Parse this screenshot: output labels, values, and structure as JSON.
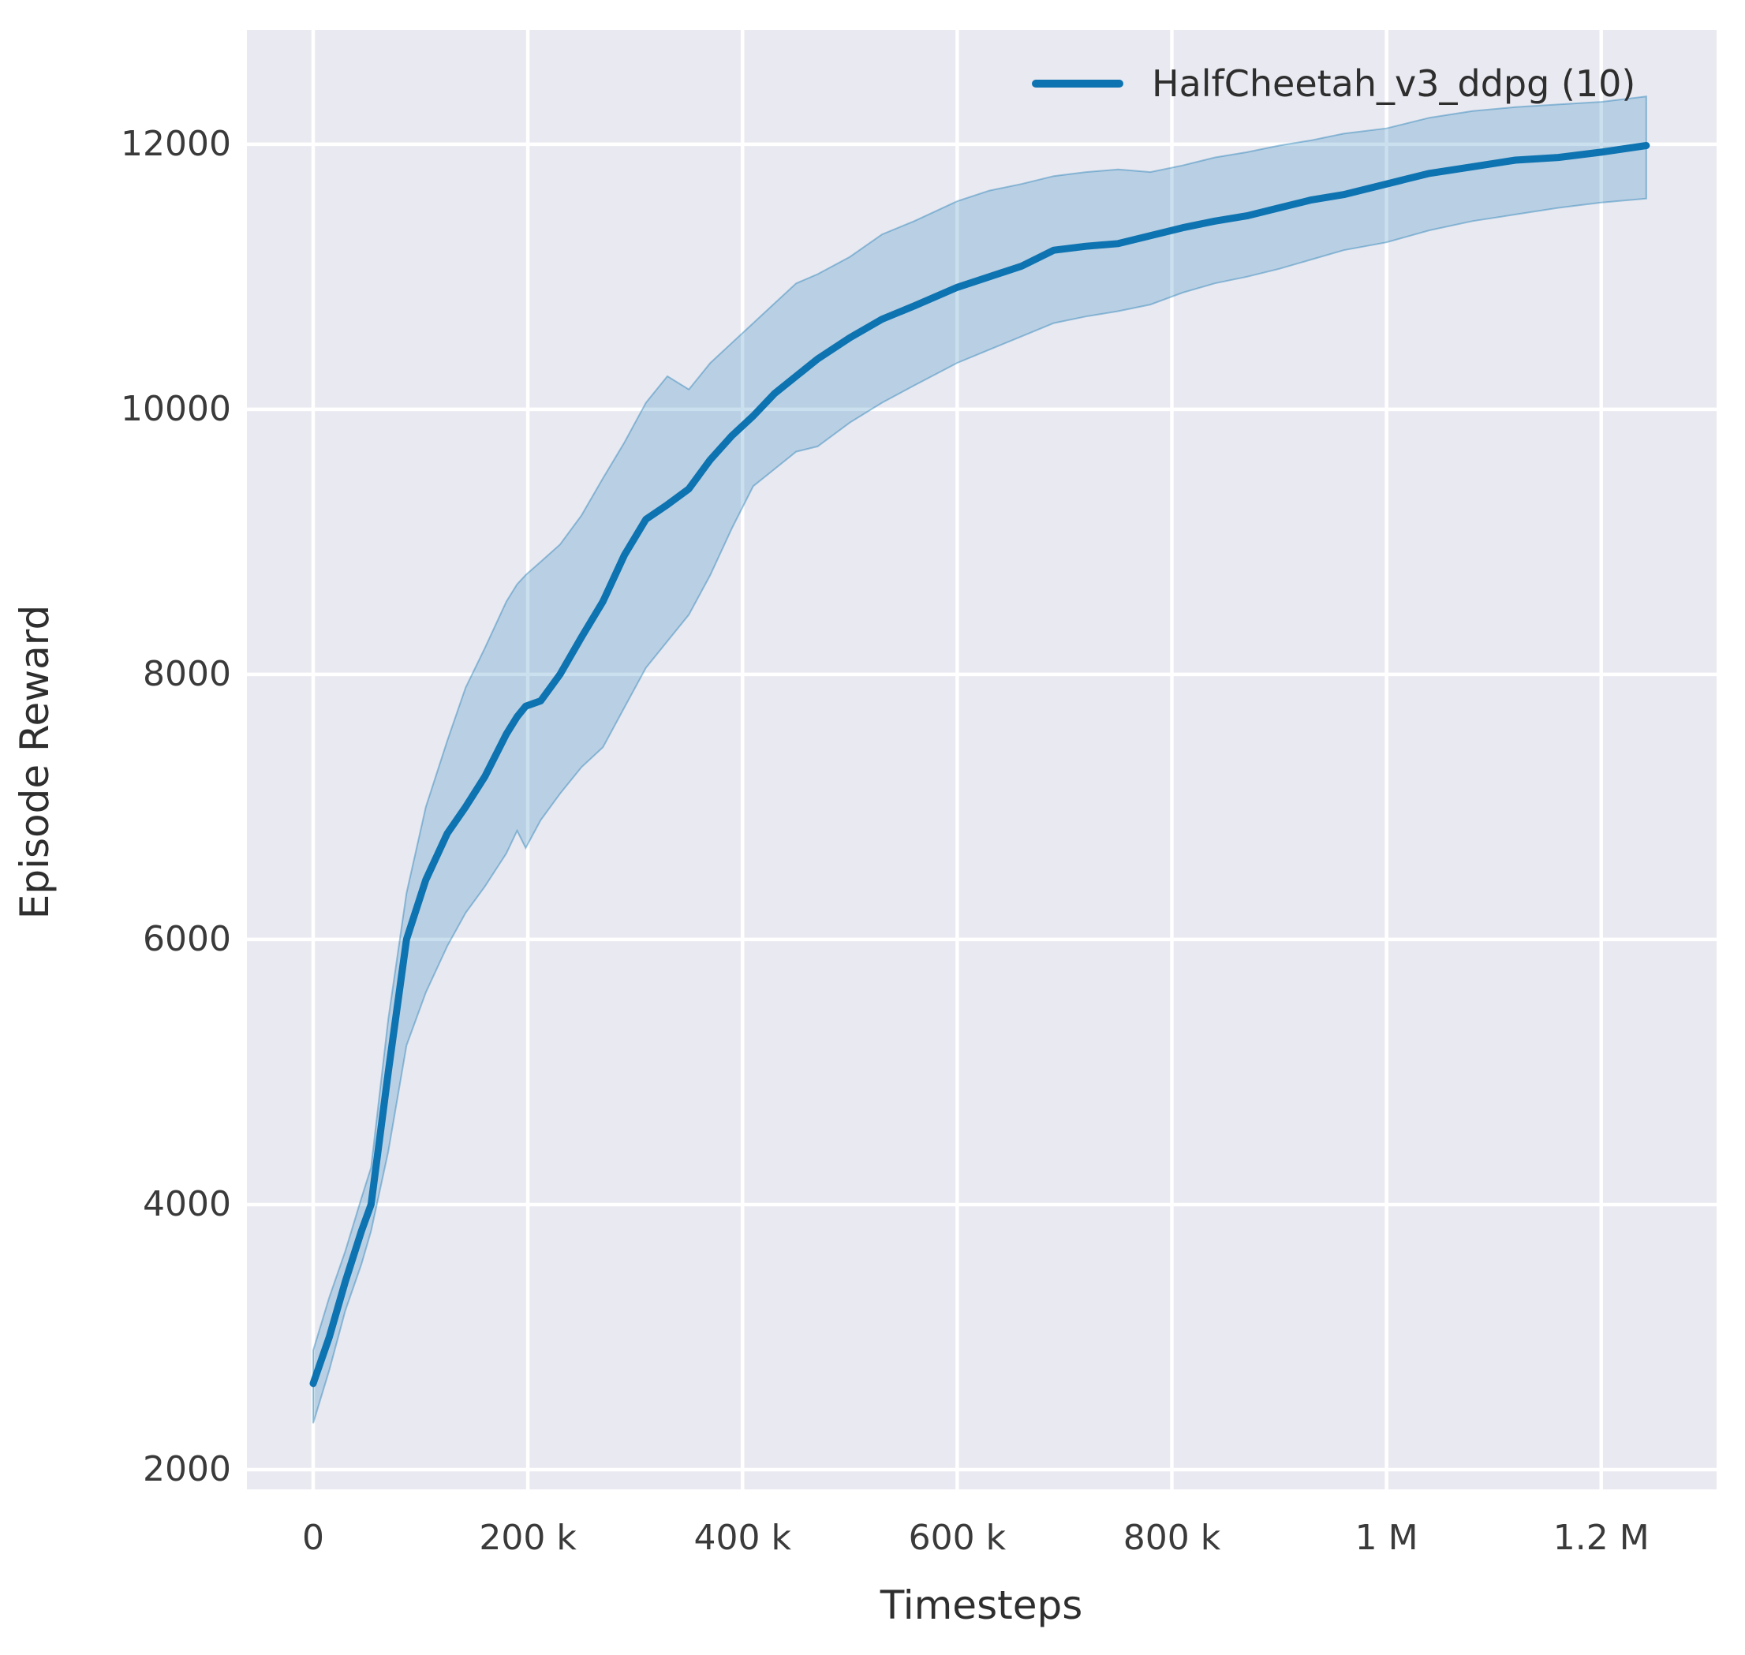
{
  "figure": {
    "xlabel": "Timesteps",
    "ylabel": "Episode Reward"
  },
  "colors": {
    "page_background": "#ffffff",
    "axes_background": "#e9e9f1",
    "grid": "#ffffff",
    "line": "#0d73b1",
    "band_fill": "rgba(13,115,177,0.22)",
    "band_edge": "rgba(13,115,177,0.38)",
    "text": "#2e2e2e"
  },
  "chart_data": {
    "type": "line",
    "title": "",
    "xlabel": "Timesteps",
    "ylabel": "Episode Reward",
    "grid": true,
    "legend_position": "upper right inside",
    "legend": [
      {
        "label": "HalfCheetah_v3_ddpg (10)",
        "color": "#0d73b1"
      }
    ],
    "x_ticks": [
      {
        "value": 0,
        "label": "0"
      },
      {
        "value": 200000,
        "label": "200 k"
      },
      {
        "value": 400000,
        "label": "400 k"
      },
      {
        "value": 600000,
        "label": "600 k"
      },
      {
        "value": 800000,
        "label": "800 k"
      },
      {
        "value": 1000000,
        "label": "1 M"
      },
      {
        "value": 1200000,
        "label": "1.2 M"
      }
    ],
    "y_ticks": [
      {
        "value": 2000,
        "label": "2000"
      },
      {
        "value": 4000,
        "label": "4000"
      },
      {
        "value": 6000,
        "label": "6000"
      },
      {
        "value": 8000,
        "label": "8000"
      },
      {
        "value": 10000,
        "label": "10000"
      },
      {
        "value": 12000,
        "label": "12000"
      }
    ],
    "xlim": [
      -61700,
      1307500
    ],
    "ylim": [
      1851,
      12862
    ],
    "series": [
      {
        "name": "HalfCheetah_v3_ddpg (10)",
        "color": "#0d73b1",
        "x": [
          0,
          15000,
          30000,
          45000,
          54000,
          70000,
          87000,
          105000,
          125000,
          142000,
          160000,
          180000,
          190000,
          198000,
          212000,
          230000,
          250000,
          270000,
          290000,
          310000,
          330000,
          350000,
          370000,
          390000,
          410000,
          430000,
          450000,
          470000,
          500000,
          530000,
          560000,
          600000,
          630000,
          660000,
          690000,
          720000,
          750000,
          780000,
          810000,
          840000,
          870000,
          900000,
          930000,
          960000,
          1000000,
          1040000,
          1080000,
          1120000,
          1160000,
          1200000,
          1242000
        ],
        "mean": [
          2650,
          3000,
          3420,
          3800,
          4000,
          5000,
          6000,
          6450,
          6800,
          7000,
          7230,
          7550,
          7680,
          7760,
          7800,
          8000,
          8280,
          8550,
          8900,
          9170,
          9280,
          9400,
          9620,
          9800,
          9950,
          10120,
          10250,
          10380,
          10540,
          10680,
          10780,
          10920,
          11000,
          11080,
          11200,
          11230,
          11250,
          11310,
          11370,
          11420,
          11460,
          11520,
          11580,
          11620,
          11700,
          11780,
          11830,
          11880,
          11900,
          11940,
          11990
        ],
        "band_lower": [
          2350,
          2750,
          3200,
          3550,
          3800,
          4400,
          5200,
          5600,
          5950,
          6200,
          6400,
          6650,
          6820,
          6690,
          6900,
          7100,
          7300,
          7450,
          7750,
          8050,
          8250,
          8450,
          8750,
          9100,
          9420,
          9550,
          9680,
          9720,
          9900,
          10050,
          10180,
          10350,
          10450,
          10550,
          10650,
          10700,
          10740,
          10790,
          10880,
          10950,
          11000,
          11060,
          11130,
          11200,
          11260,
          11350,
          11420,
          11470,
          11520,
          11560,
          11590
        ],
        "band_upper": [
          2900,
          3300,
          3650,
          4050,
          4280,
          5400,
          6350,
          7000,
          7500,
          7900,
          8200,
          8550,
          8680,
          8750,
          8850,
          8980,
          9200,
          9480,
          9750,
          10050,
          10250,
          10150,
          10350,
          10500,
          10650,
          10800,
          10950,
          11020,
          11150,
          11320,
          11420,
          11570,
          11650,
          11700,
          11760,
          11790,
          11810,
          11790,
          11840,
          11900,
          11940,
          11990,
          12030,
          12080,
          12120,
          12200,
          12250,
          12280,
          12300,
          12320,
          12360
        ]
      }
    ]
  }
}
